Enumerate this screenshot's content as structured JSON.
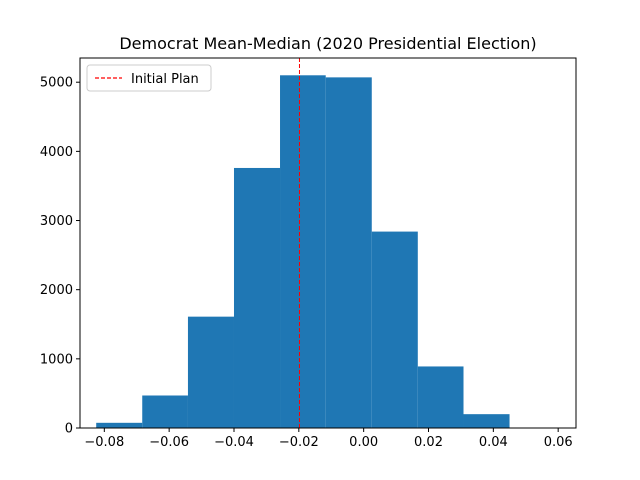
{
  "chart_data": {
    "type": "bar",
    "subtype": "histogram",
    "title": "Democrat Mean-Median (2020 Presidential Election)",
    "xlabel": "",
    "ylabel": "",
    "xlim": [
      -0.0875,
      0.0655
    ],
    "ylim": [
      0,
      5350
    ],
    "xticks": [
      -0.08,
      -0.06,
      -0.04,
      -0.02,
      0.0,
      0.02,
      0.04,
      0.06
    ],
    "xtick_labels": [
      "−0.08",
      "−0.06",
      "−0.04",
      "−0.02",
      "0.00",
      "0.02",
      "0.04",
      "0.06"
    ],
    "yticks": [
      0,
      1000,
      2000,
      3000,
      4000,
      5000
    ],
    "ytick_labels": [
      "0",
      "1000",
      "2000",
      "3000",
      "4000",
      "5000"
    ],
    "bins": [
      {
        "x0": -0.0825,
        "x1": -0.0683,
        "count": 75
      },
      {
        "x0": -0.0683,
        "x1": -0.0542,
        "count": 470
      },
      {
        "x0": -0.0542,
        "x1": -0.04,
        "count": 1610
      },
      {
        "x0": -0.04,
        "x1": -0.0258,
        "count": 3760
      },
      {
        "x0": -0.0258,
        "x1": -0.0117,
        "count": 5100
      },
      {
        "x0": -0.0117,
        "x1": 0.0025,
        "count": 5070
      },
      {
        "x0": 0.0025,
        "x1": 0.0167,
        "count": 2840
      },
      {
        "x0": 0.0167,
        "x1": 0.0308,
        "count": 890
      },
      {
        "x0": 0.0308,
        "x1": 0.045,
        "count": 200
      },
      {
        "x0": 0.045,
        "x1": 0.0592,
        "count": 5
      }
    ],
    "bar_color": "#1f77b4",
    "reference_line": {
      "label": "Initial Plan",
      "x": -0.0198,
      "color": "#ff0000",
      "style": "dashed"
    },
    "legend": {
      "position": "top-left",
      "entries": [
        "Initial Plan"
      ]
    },
    "grid": false
  }
}
